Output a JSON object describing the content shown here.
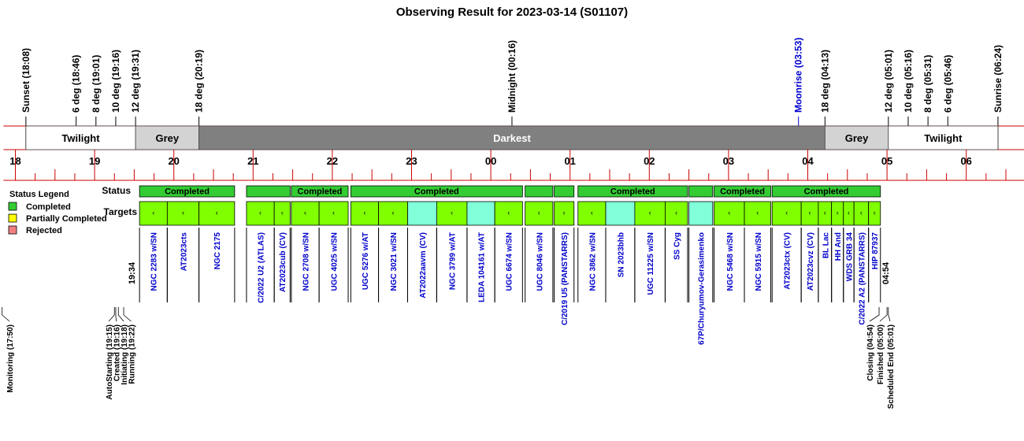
{
  "title": "Observing Result for 2023-03-14 (S01107)",
  "colors": {
    "night_line": "#cc0000",
    "twilight_fill": "#ffffff",
    "grey_fill": "#d3d3d3",
    "darkest_fill": "#808080",
    "completed": "#33cc33",
    "partial": "#ffff00",
    "rejected": "#f08080",
    "target_completed": "#80ff00",
    "target_other": "#80ffd9",
    "target_text": "#0000cc",
    "moon_text": "#0000cc"
  },
  "chart_data": {
    "type": "timeline",
    "x_axis": {
      "unit": "hour of night (UT)",
      "start_hour": 17.85,
      "end_hour": 30.75,
      "tick_labels": [
        "18",
        "19",
        "20",
        "21",
        "22",
        "23",
        "00",
        "01",
        "02",
        "03",
        "04",
        "05",
        "06"
      ]
    },
    "sun_events": [
      {
        "label": "Sunset (18:08)",
        "time": 18.133
      },
      {
        "label": "6 deg (18:46)",
        "time": 18.767
      },
      {
        "label": "8 deg (19:01)",
        "time": 19.017
      },
      {
        "label": "10 deg (19:16)",
        "time": 19.267
      },
      {
        "label": "12 deg (19:31)",
        "time": 19.517
      },
      {
        "label": "18 deg (20:19)",
        "time": 20.317
      },
      {
        "label": "Midnight (00:16)",
        "time": 24.267
      },
      {
        "label": "Moonrise (03:53)",
        "time": 27.883,
        "moon": true
      },
      {
        "label": "18 deg (04:13)",
        "time": 28.217
      },
      {
        "label": "12 deg (05:01)",
        "time": 29.017
      },
      {
        "label": "10 deg (05:16)",
        "time": 29.267
      },
      {
        "label": "8 deg (05:31)",
        "time": 29.517
      },
      {
        "label": "6 deg (05:46)",
        "time": 29.767
      },
      {
        "label": "Sunrise (06:24)",
        "time": 30.4
      }
    ],
    "sky_bands": [
      {
        "label": "Twilight",
        "start": 18.133,
        "end": 19.517,
        "kind": "twilight"
      },
      {
        "label": "Grey",
        "start": 19.517,
        "end": 20.317,
        "kind": "grey"
      },
      {
        "label": "Darkest",
        "start": 20.317,
        "end": 28.217,
        "kind": "darkest"
      },
      {
        "label": "Grey",
        "start": 28.217,
        "end": 29.017,
        "kind": "grey"
      },
      {
        "label": "Twilight",
        "start": 29.017,
        "end": 30.4,
        "kind": "twilight"
      }
    ],
    "row_labels": {
      "status": "Status",
      "targets": "Targets"
    },
    "status_segments": [
      {
        "start": 19.567,
        "end": 20.767,
        "label": "Completed",
        "status": "completed"
      },
      {
        "start": 20.917,
        "end": 21.467,
        "label": "",
        "status": "completed"
      },
      {
        "start": 21.483,
        "end": 22.2,
        "label": "Completed",
        "status": "completed"
      },
      {
        "start": 22.233,
        "end": 24.4,
        "label": "Completed",
        "status": "completed"
      },
      {
        "start": 24.433,
        "end": 24.783,
        "label": "",
        "status": "completed"
      },
      {
        "start": 24.8,
        "end": 25.05,
        "label": "",
        "status": "completed"
      },
      {
        "start": 25.1,
        "end": 26.483,
        "label": "Completed",
        "status": "completed"
      },
      {
        "start": 26.5,
        "end": 26.8,
        "label": "",
        "status": "completed"
      },
      {
        "start": 26.817,
        "end": 27.533,
        "label": "Completed",
        "status": "completed"
      },
      {
        "start": 27.55,
        "end": 28.917,
        "label": "Completed",
        "status": "completed"
      }
    ],
    "targets": [
      {
        "name": "NGC 2283 w/SN",
        "start": 19.567,
        "end": 19.917,
        "done": true
      },
      {
        "name": "AT2023cts",
        "start": 19.917,
        "end": 20.317,
        "done": true
      },
      {
        "name": "NGC 2175",
        "start": 20.317,
        "end": 20.767,
        "done": true
      },
      {
        "name": "C/2022 U2 (ATLAS)",
        "start": 20.917,
        "end": 21.267,
        "done": true
      },
      {
        "name": "AT2023cub (CV)",
        "start": 21.267,
        "end": 21.467,
        "done": true
      },
      {
        "name": "NGC 2708 w/SN",
        "start": 21.483,
        "end": 21.833,
        "done": true
      },
      {
        "name": "UGC 4025 w/SN",
        "start": 21.833,
        "end": 22.2,
        "done": true
      },
      {
        "name": "UGC 5276 w/AT",
        "start": 22.233,
        "end": 22.583,
        "done": true
      },
      {
        "name": "NGC 3021 w/SN",
        "start": 22.583,
        "end": 22.95,
        "done": true
      },
      {
        "name": "AT2022aavm (CV)",
        "start": 22.95,
        "end": 23.317,
        "done": false
      },
      {
        "name": "NGC 3799 w/AT",
        "start": 23.317,
        "end": 23.7,
        "done": true
      },
      {
        "name": "LEDA 104161 w/AT",
        "start": 23.7,
        "end": 24.05,
        "done": false
      },
      {
        "name": "UGC 6674 w/SN",
        "start": 24.05,
        "end": 24.4,
        "done": true
      },
      {
        "name": "UGC 8046 w/SN",
        "start": 24.433,
        "end": 24.783,
        "done": true
      },
      {
        "name": "C/2019 U5 (PANSTARRS)",
        "start": 24.8,
        "end": 25.05,
        "done": true
      },
      {
        "name": "NGC 3862 w/SN",
        "start": 25.1,
        "end": 25.45,
        "done": true
      },
      {
        "name": "SN 2023bhb",
        "start": 25.45,
        "end": 25.817,
        "done": false
      },
      {
        "name": "UGC 11225 w/SN",
        "start": 25.817,
        "end": 26.2,
        "done": true
      },
      {
        "name": "SS Cyg",
        "start": 26.2,
        "end": 26.483,
        "done": true
      },
      {
        "name": "67P/Churyumov-Gerasimenko",
        "start": 26.5,
        "end": 26.8,
        "done": false
      },
      {
        "name": "NGC 5468 w/SN",
        "start": 26.817,
        "end": 27.2,
        "done": true
      },
      {
        "name": "NGC 5915 w/SN",
        "start": 27.2,
        "end": 27.533,
        "done": true
      },
      {
        "name": "AT2023ctx (CV)",
        "start": 27.55,
        "end": 27.917,
        "done": true
      },
      {
        "name": "AT2023cvz (CV)",
        "start": 27.917,
        "end": 28.133,
        "done": true
      },
      {
        "name": "BL Lac",
        "start": 28.133,
        "end": 28.3,
        "done": true
      },
      {
        "name": "HH And",
        "start": 28.3,
        "end": 28.45,
        "done": true
      },
      {
        "name": "WDS GRB 34",
        "start": 28.45,
        "end": 28.583,
        "done": true
      },
      {
        "name": "C/2022 A2 (PANSTARRS)",
        "start": 28.583,
        "end": 28.767,
        "done": true
      },
      {
        "name": "HIP 87937",
        "start": 28.767,
        "end": 28.917,
        "done": true
      }
    ],
    "window_labels": [
      {
        "label": "19:34",
        "time": 19.567
      },
      {
        "label": "04:54",
        "time": 28.917
      }
    ],
    "events_left": [
      {
        "label": "Monitoring (17:50)",
        "time": 17.833
      },
      {
        "label": "AutoStarting (19:15)",
        "time": 19.25
      },
      {
        "label": "Created (19:16)",
        "time": 19.267
      },
      {
        "label": "Initiating (19:18)",
        "time": 19.3
      },
      {
        "label": "Running (19:22)",
        "time": 19.367
      }
    ],
    "events_right": [
      {
        "label": "Closing (04:54)",
        "time": 28.9
      },
      {
        "label": "Finished (05:00)",
        "time": 29.0
      },
      {
        "label": "Scheduled End (05:01)",
        "time": 29.017
      }
    ]
  },
  "legend": {
    "title": "Status Legend",
    "items": [
      {
        "label": "Completed",
        "color": "#33cc33"
      },
      {
        "label": "Partially Completed",
        "color": "#ffff00"
      },
      {
        "label": "Rejected",
        "color": "#f08080"
      }
    ]
  }
}
